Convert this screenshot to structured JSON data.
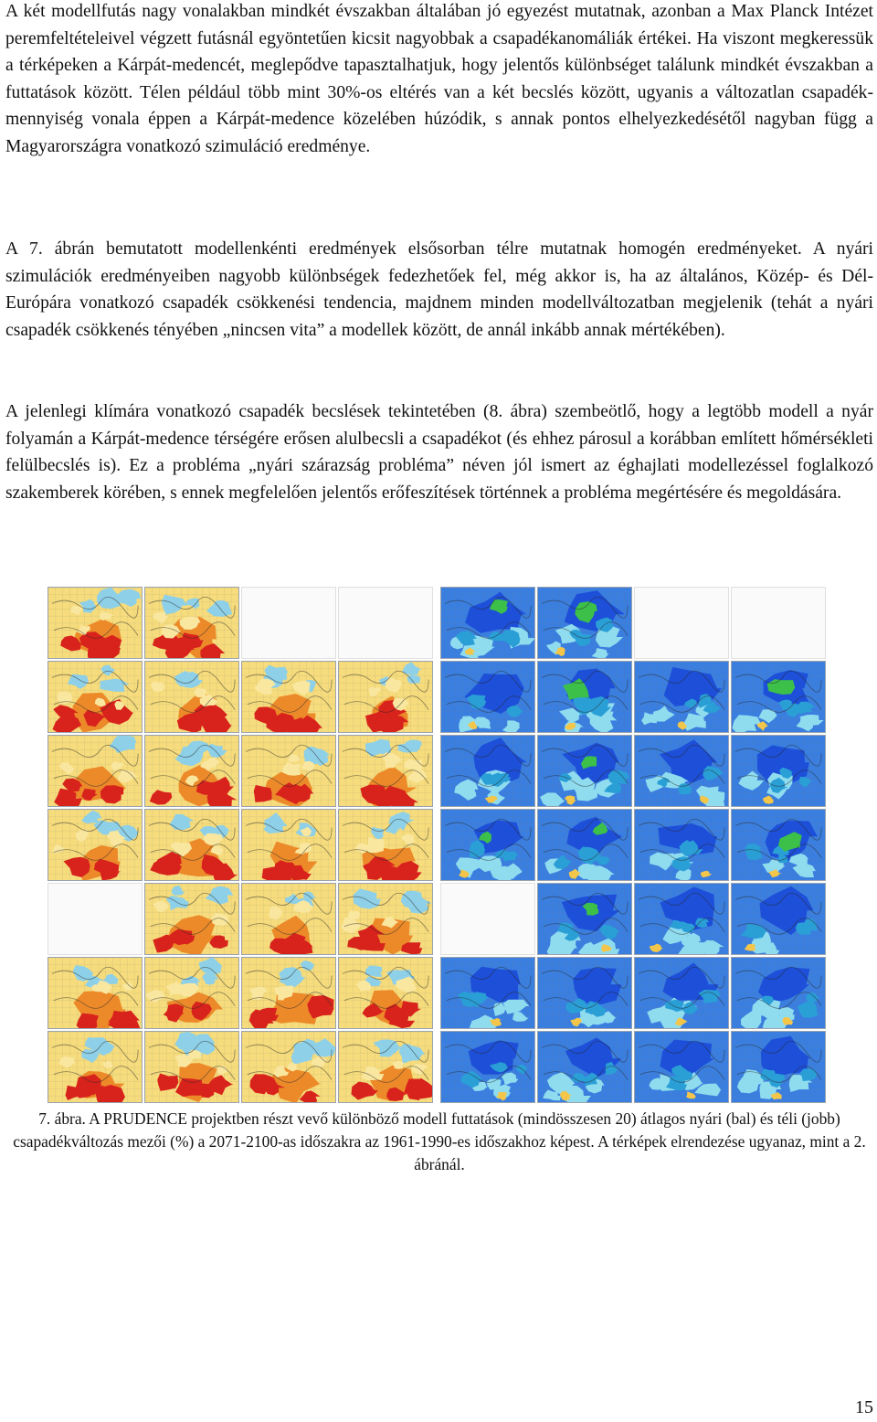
{
  "paragraphs": [
    "A két modellfutás nagy vonalakban mindkét évszakban általában jó egyezést mutatnak, azonban a Max Planck Intézet peremfeltételeivel végzett futásnál egyöntetűen kicsit nagyobbak a csapadékanomáliák értékei. Ha viszont megkeressük a térképeken a Kárpát-medencét, meglepődve tapasztalhatjuk, hogy jelentős különbséget találunk mindkét évszakban a futtatások között. Télen például több mint 30%-os eltérés van a két becslés között, ugyanis a változatlan csapadék-mennyiség vonala éppen a Kárpát-medence közelében húzódik, s annak pontos elhelyezkedésétől nagyban függ a Magyarországra vonatkozó szimuláció eredménye.",
    "A 7. ábrán bemutatott modellenkénti eredmények elsősorban télre mutatnak homogén eredményeket. A nyári szimulációk eredményeiben nagyobb különbségek fedezhetőek fel, még akkor is, ha az általános, Közép- és Dél-Európára vonatkozó csapadék csökkenési tendencia, majdnem minden modellváltozatban megjelenik (tehát a nyári csapadék csökkenés tényében „nincsen vita” a modellek között, de annál inkább annak mértékében).",
    "A jelenlegi klímára vonatkozó csapadék becslések tekintetében (8. ábra) szembeötlő, hogy a legtöbb modell a nyár folyamán a Kárpát-medence térségére erősen alulbecsli a csapadékot (és ehhez párosul a korábban említett hőmérsékleti felülbecslés is). Ez a probléma „nyári szárazság probléma” néven jól ismert az éghajlati modellezéssel foglalkozó szakemberek körében, s ennek megfelelően jelentős erőfeszítések történnek a probléma megértésére és megoldására."
  ],
  "figure": {
    "summer_maps": [
      "summer",
      "summer",
      "none",
      "none",
      "summer",
      "summer",
      "summer",
      "summer",
      "summer",
      "summer",
      "summer",
      "summer",
      "summer",
      "summer",
      "summer",
      "summer",
      "none",
      "summer",
      "summer",
      "summer",
      "summer",
      "summer",
      "summer",
      "summer",
      "summer",
      "summer",
      "summer",
      "summer"
    ],
    "winter_maps": [
      "winter",
      "winter",
      "none",
      "none",
      "winter",
      "winter",
      "winter",
      "winter",
      "winter",
      "winter",
      "winter",
      "winter",
      "winter",
      "winter",
      "winter",
      "winter",
      "none",
      "winter",
      "winter",
      "winter",
      "winter",
      "winter",
      "winter",
      "winter",
      "winter",
      "winter",
      "winter",
      "winter"
    ],
    "summer_colors": [
      "#f3c64a",
      "#ec8a2a",
      "#d8231c",
      "#f9e7a0",
      "#8ed0e8"
    ],
    "winter_colors": [
      "#1d4fd8",
      "#2a9fd6",
      "#8fdcef",
      "#3cc04a",
      "#f3c64a"
    ]
  },
  "caption": "7. ábra. A PRUDENCE projektben részt vevő különböző modell futtatások (mindösszesen 20) átlagos nyári (bal) és téli (jobb) csapadékváltozás mezői (%) a 2071-2100-as időszakra az 1961-1990-es időszakhoz képest. A térképek elrendezése ugyanaz, mint a 2. ábránál.",
  "page_number": "15"
}
